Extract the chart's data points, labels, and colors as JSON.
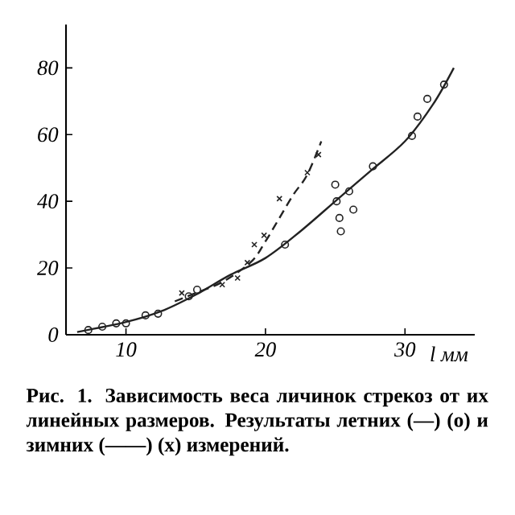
{
  "chart_data": {
    "type": "scatter",
    "xlabel": "*l* мм",
    "xlim": [
      5.7,
      35
    ],
    "ylim": [
      0,
      93
    ],
    "xticks": [
      10,
      20,
      30
    ],
    "yticks": [
      0,
      20,
      40,
      60,
      80
    ],
    "annotations": [
      "Рис. 1. Зависимость веса личинок стрекоз от их линейных размеров. Результаты летних (—) (о) и зимних (——) (х) измерений."
    ],
    "series": [
      {
        "marker": "circle",
        "color": "#222222",
        "x": [
          7.3,
          8.3,
          9.3,
          10.0,
          11.4,
          12.3,
          14.5,
          15.1,
          21.4,
          25.0,
          25.1,
          25.3,
          25.4,
          26.0,
          26.3,
          27.7,
          30.5,
          30.9,
          31.6,
          32.8
        ],
        "values": [
          1.4,
          2.4,
          3.4,
          3.4,
          5.8,
          6.3,
          11.5,
          13.5,
          27,
          45,
          40,
          35,
          31,
          43,
          37.5,
          50.5,
          59.6,
          65.4,
          70.7,
          75
        ]
      },
      {
        "marker": "cross",
        "color": "#222222",
        "x": [
          14.0,
          16.9,
          18.0,
          18.7,
          19.2,
          19.9,
          21.0,
          23.0,
          23.8
        ],
        "values": [
          12.5,
          15,
          17,
          21.6,
          27,
          29.8,
          40.8,
          48.6,
          54
        ]
      },
      {
        "type": "line",
        "line_style": "solid",
        "color": "#222222",
        "x": [
          6.5,
          10,
          12.5,
          15,
          17.5,
          20,
          22.5,
          25,
          27.5,
          30,
          32,
          33.5
        ],
        "values": [
          0.8,
          3.8,
          7,
          12,
          18,
          23,
          31,
          40,
          49,
          58,
          69,
          80
        ]
      },
      {
        "type": "line",
        "line_style": "dashed",
        "color": "#222222",
        "x": [
          13.5,
          15,
          17,
          19,
          20,
          21,
          22,
          23,
          24
        ],
        "values": [
          10,
          12.5,
          16,
          22,
          28,
          35,
          42,
          48,
          58
        ]
      }
    ]
  }
}
